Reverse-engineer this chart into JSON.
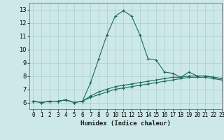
{
  "xlabel": "Humidex (Indice chaleur)",
  "ylabel": "",
  "bg_color": "#cce8e8",
  "grid_color": "#aacece",
  "line_color": "#1a6b5a",
  "xlim": [
    -0.5,
    23
  ],
  "ylim": [
    5.5,
    13.5
  ],
  "xticks": [
    0,
    1,
    2,
    3,
    4,
    5,
    6,
    7,
    8,
    9,
    10,
    11,
    12,
    13,
    14,
    15,
    16,
    17,
    18,
    19,
    20,
    21,
    22,
    23
  ],
  "yticks": [
    6,
    7,
    8,
    9,
    10,
    11,
    12,
    13
  ],
  "series": [
    [
      6.1,
      6.0,
      6.1,
      6.1,
      6.2,
      6.0,
      6.1,
      7.5,
      9.3,
      11.1,
      12.5,
      12.9,
      12.5,
      11.1,
      9.3,
      9.2,
      8.3,
      8.2,
      7.9,
      8.3,
      8.0,
      8.0,
      7.9,
      7.8
    ],
    [
      6.1,
      6.0,
      6.1,
      6.1,
      6.2,
      6.0,
      6.1,
      6.5,
      6.8,
      7.0,
      7.2,
      7.3,
      7.4,
      7.5,
      7.6,
      7.7,
      7.8,
      7.9,
      7.9,
      8.0,
      8.0,
      8.0,
      7.9,
      7.8
    ],
    [
      6.1,
      6.0,
      6.1,
      6.1,
      6.2,
      6.0,
      6.1,
      6.4,
      6.6,
      6.8,
      7.0,
      7.1,
      7.2,
      7.3,
      7.4,
      7.5,
      7.6,
      7.7,
      7.8,
      7.9,
      7.9,
      7.9,
      7.8,
      7.7
    ]
  ],
  "xlabel_fontsize": 6.5,
  "tick_fontsize": 5.5,
  "marker": "+",
  "markersize": 3,
  "linewidth": 0.8
}
